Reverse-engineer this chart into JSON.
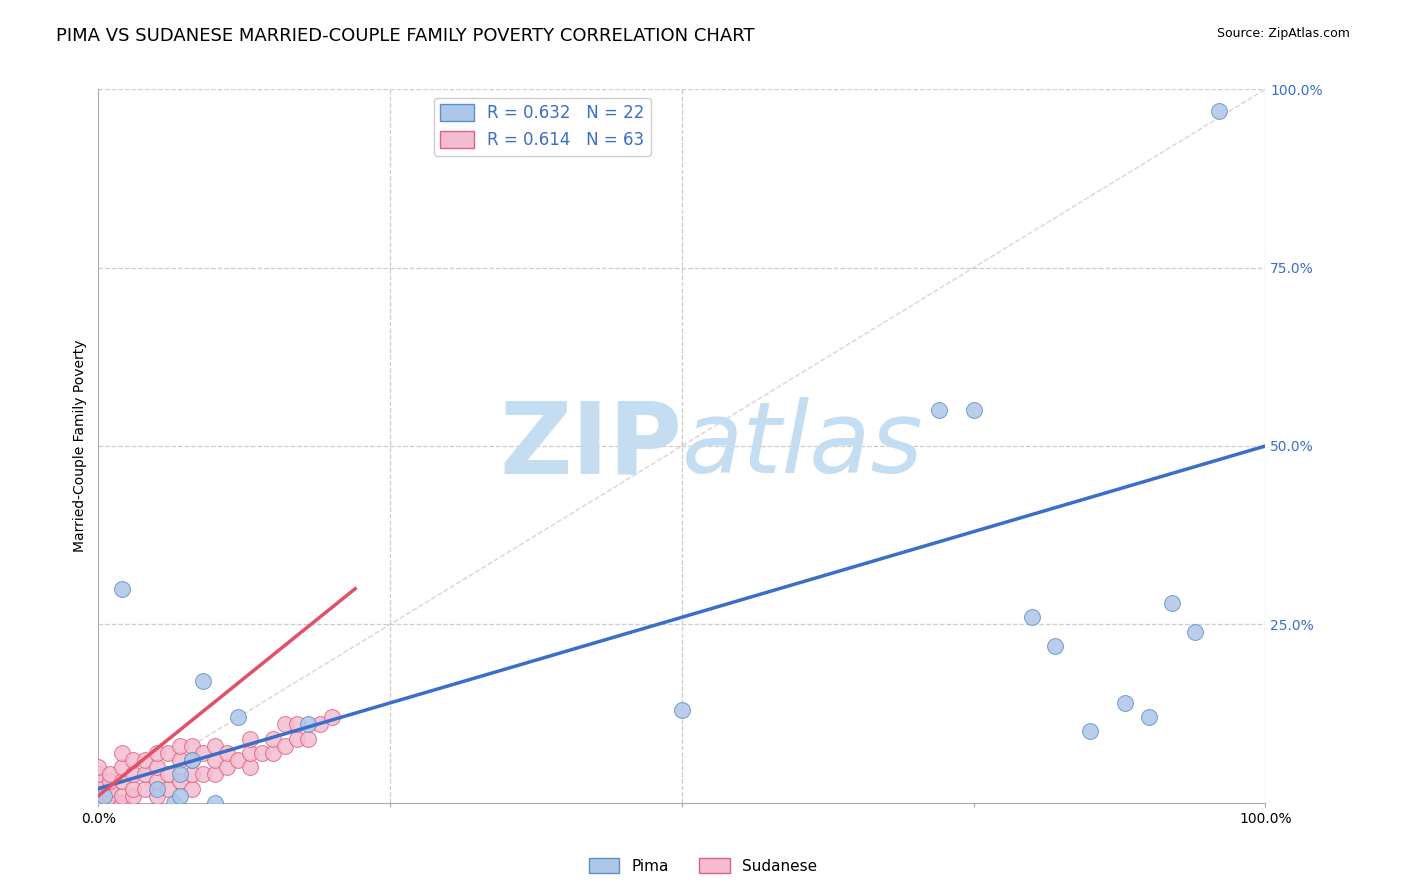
{
  "title": "PIMA VS SUDANESE MARRIED-COUPLE FAMILY POVERTY CORRELATION CHART",
  "source": "Source: ZipAtlas.com",
  "ylabel": "Married-Couple Family Poverty",
  "xlim": [
    0,
    1
  ],
  "ylim": [
    0,
    1
  ],
  "pima_R": 0.632,
  "pima_N": 22,
  "sudanese_R": 0.614,
  "sudanese_N": 63,
  "pima_color": "#aec6e8",
  "pima_edge_color": "#5b8fc9",
  "pima_line_color": "#3a6ec8",
  "sudanese_color": "#f4bcd0",
  "sudanese_edge_color": "#e0607a",
  "sudanese_line_color": "#e0506a",
  "legend_text_color": "#3a6ec8",
  "watermark_zip_color": "#c5ddf0",
  "watermark_atlas_color": "#c5ddf0",
  "pima_x": [
    0.005,
    0.02,
    0.05,
    0.065,
    0.07,
    0.07,
    0.08,
    0.09,
    0.1,
    0.12,
    0.18,
    0.5,
    0.72,
    0.75,
    0.8,
    0.82,
    0.85,
    0.88,
    0.9,
    0.92,
    0.94,
    0.96
  ],
  "pima_y": [
    0.01,
    0.3,
    0.02,
    0.0,
    0.04,
    0.01,
    0.06,
    0.17,
    0.0,
    0.12,
    0.11,
    0.13,
    0.55,
    0.55,
    0.26,
    0.22,
    0.1,
    0.14,
    0.12,
    0.28,
    0.24,
    0.97
  ],
  "sudanese_x": [
    0.0,
    0.0,
    0.0,
    0.0,
    0.0,
    0.0,
    0.0,
    0.0,
    0.0,
    0.0,
    0.01,
    0.01,
    0.01,
    0.01,
    0.01,
    0.02,
    0.02,
    0.02,
    0.02,
    0.02,
    0.02,
    0.03,
    0.03,
    0.03,
    0.03,
    0.04,
    0.04,
    0.04,
    0.05,
    0.05,
    0.05,
    0.05,
    0.06,
    0.06,
    0.06,
    0.07,
    0.07,
    0.07,
    0.08,
    0.08,
    0.08,
    0.08,
    0.09,
    0.09,
    0.1,
    0.1,
    0.1,
    0.11,
    0.11,
    0.12,
    0.13,
    0.13,
    0.13,
    0.14,
    0.15,
    0.15,
    0.16,
    0.16,
    0.17,
    0.17,
    0.18,
    0.19,
    0.2
  ],
  "sudanese_y": [
    0.0,
    0.0,
    0.0,
    0.0,
    0.01,
    0.01,
    0.02,
    0.03,
    0.04,
    0.05,
    0.0,
    0.01,
    0.02,
    0.03,
    0.04,
    0.0,
    0.0,
    0.01,
    0.03,
    0.05,
    0.07,
    0.01,
    0.02,
    0.04,
    0.06,
    0.02,
    0.04,
    0.06,
    0.01,
    0.03,
    0.05,
    0.07,
    0.02,
    0.04,
    0.07,
    0.03,
    0.06,
    0.08,
    0.02,
    0.04,
    0.06,
    0.08,
    0.04,
    0.07,
    0.04,
    0.06,
    0.08,
    0.05,
    0.07,
    0.06,
    0.05,
    0.07,
    0.09,
    0.07,
    0.07,
    0.09,
    0.08,
    0.11,
    0.09,
    0.11,
    0.09,
    0.11,
    0.12
  ],
  "background_color": "#ffffff",
  "grid_color": "#cccccc",
  "title_fontsize": 13,
  "axis_label_fontsize": 10,
  "tick_fontsize": 10,
  "legend_fontsize": 12,
  "marker_size": 130,
  "pima_trend_x0": 0.0,
  "pima_trend_y0": 0.02,
  "pima_trend_x1": 1.0,
  "pima_trend_y1": 0.5,
  "sudanese_trend_x0": 0.0,
  "sudanese_trend_y0": 0.01,
  "sudanese_trend_x1": 0.22,
  "sudanese_trend_y1": 0.3
}
